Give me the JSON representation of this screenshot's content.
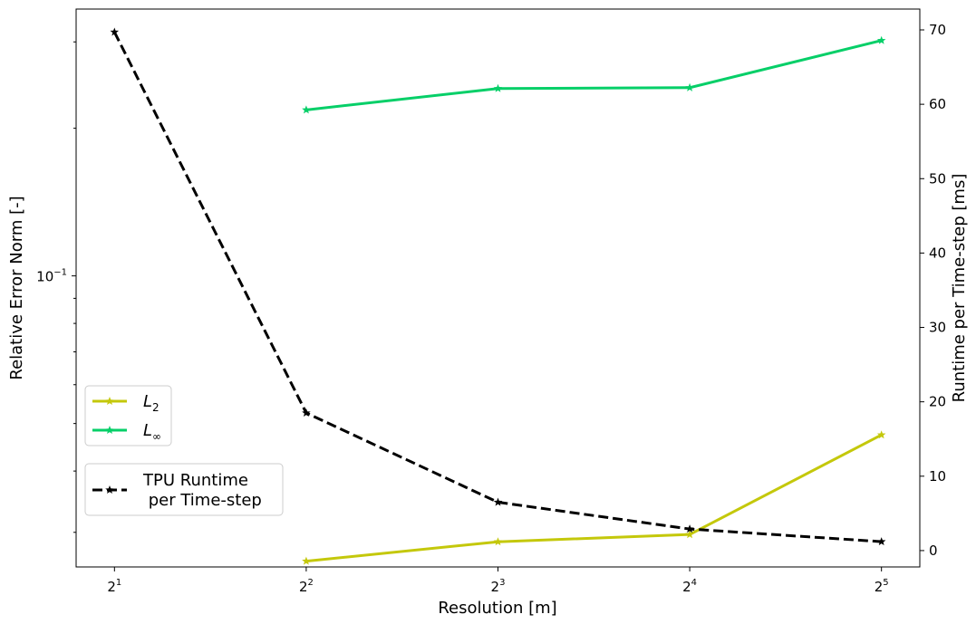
{
  "chart_data": {
    "type": "line",
    "title": "",
    "xlabel": "Resolution [m]",
    "ylabel_left": "Relative Error Norm [-]",
    "ylabel_right": "Runtime per Time-step [ms]",
    "x_scale": "log2",
    "y_left_scale": "log",
    "x_tick_labels": [
      {
        "base": "2",
        "exp": "1"
      },
      {
        "base": "2",
        "exp": "2"
      },
      {
        "base": "2",
        "exp": "3"
      },
      {
        "base": "2",
        "exp": "4"
      },
      {
        "base": "2",
        "exp": "5"
      }
    ],
    "x_ticks": [
      2,
      4,
      8,
      16,
      32
    ],
    "y_left_tick_labels": [
      {
        "base": "10",
        "exp": "−1",
        "value": 0.1
      }
    ],
    "y_left_lim": [
      0.0255,
      0.35
    ],
    "y_right_ticks": [
      0,
      10,
      20,
      30,
      40,
      50,
      60,
      70
    ],
    "y_right_lim": [
      -2.2,
      72.8
    ],
    "grid": false,
    "series": [
      {
        "name": "L₂",
        "label_base": "L",
        "label_sub": "2",
        "axis": "left",
        "color": "#c4c80b",
        "dash": "solid",
        "marker": "star",
        "x": [
          4,
          8,
          16,
          32
        ],
        "y": [
          0.0262,
          0.0287,
          0.0297,
          0.0474
        ]
      },
      {
        "name": "L∞",
        "label_base": "L",
        "label_sub": "∞",
        "axis": "left",
        "color": "#06cf68",
        "dash": "solid",
        "marker": "star",
        "x": [
          4,
          8,
          16,
          32
        ],
        "y": [
          0.218,
          0.241,
          0.242,
          0.302
        ]
      },
      {
        "name": "TPU Runtime\n per Time-step",
        "label_lines": [
          "TPU Runtime",
          " per Time-step"
        ],
        "axis": "right",
        "color": "#000000",
        "dash": "dashed",
        "marker": "star",
        "x": [
          2,
          4,
          8,
          16,
          32
        ],
        "y": [
          69.7,
          18.5,
          6.5,
          2.9,
          1.2
        ]
      }
    ],
    "legends": [
      {
        "placement": "center-left",
        "series": [
          0,
          1
        ]
      },
      {
        "placement": "lower-left",
        "series": [
          2
        ]
      }
    ]
  }
}
